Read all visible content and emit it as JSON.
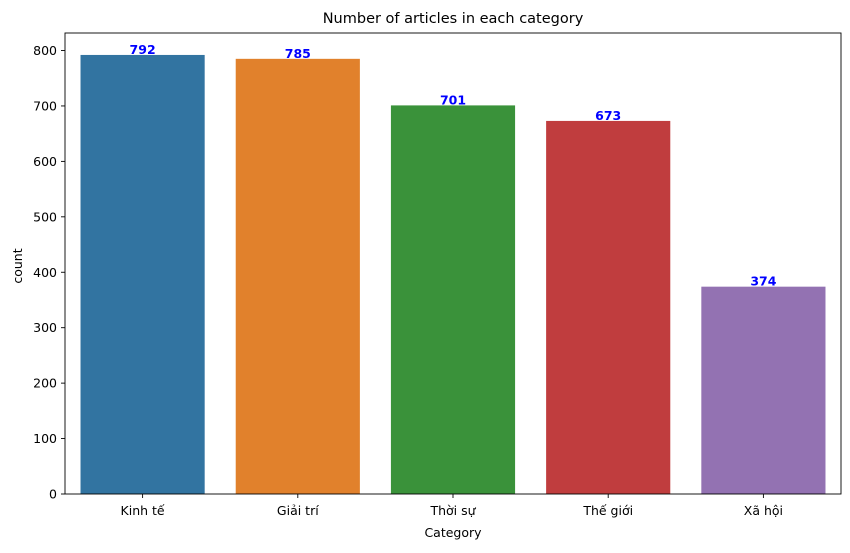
{
  "chart_data": {
    "type": "bar",
    "title": "Number of articles in each category",
    "xlabel": "Category",
    "ylabel": "count",
    "categories": [
      "Kinh tế",
      "Giải trí",
      "Thời sự",
      "Thế giới",
      "Xã hội"
    ],
    "values": [
      792,
      785,
      701,
      673,
      374
    ],
    "data_labels": [
      "792",
      "785",
      "701",
      "673",
      "374"
    ],
    "colors": [
      "#3274a1",
      "#e1812c",
      "#3a923a",
      "#c03d3e",
      "#9372b2"
    ],
    "data_label_color": "#0000ff",
    "ylim": [
      0,
      831.6
    ],
    "yticks": [
      0,
      100,
      200,
      300,
      400,
      500,
      600,
      700,
      800
    ],
    "ytick_labels": [
      "0",
      "100",
      "200",
      "300",
      "400",
      "500",
      "600",
      "700",
      "800"
    ],
    "grid": false,
    "legend": "none"
  }
}
